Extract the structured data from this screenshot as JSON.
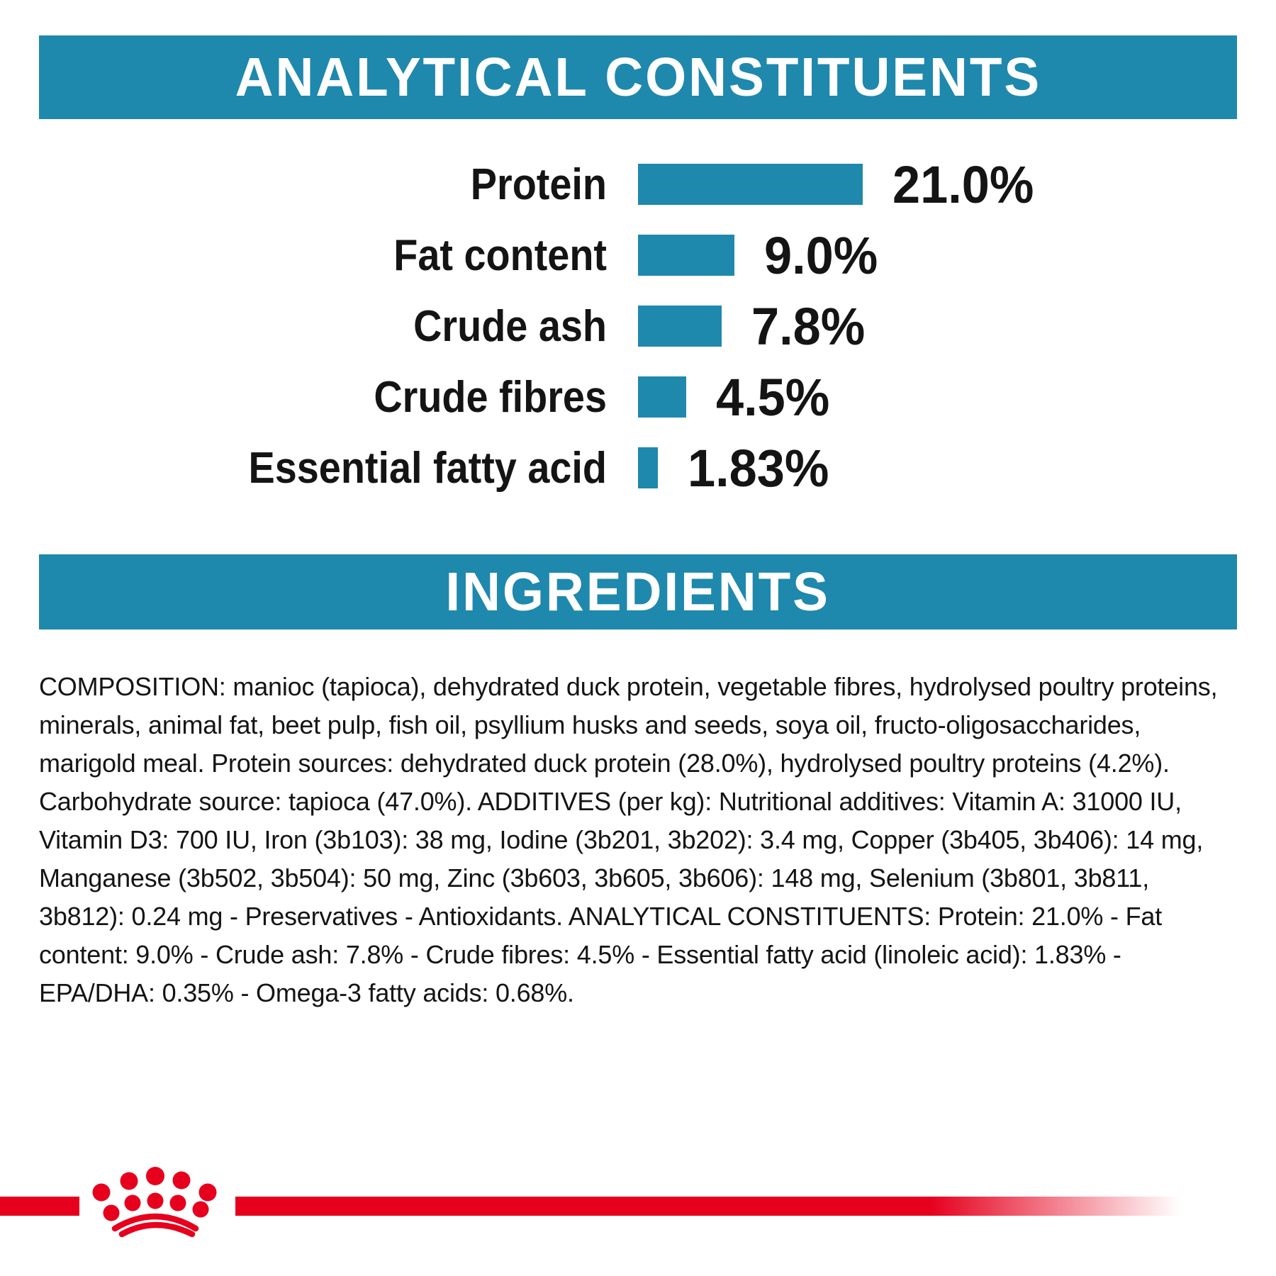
{
  "colors": {
    "teal": "#1F88AD",
    "red": "#E6001E",
    "text": "#141414",
    "header_text": "#FFFFFF",
    "background": "#FFFFFF"
  },
  "header_analytical": {
    "title": "ANALYTICAL CONSTITUENTS"
  },
  "header_ingredients": {
    "title": "INGREDIENTS"
  },
  "chart_data": {
    "type": "bar",
    "orientation": "horizontal",
    "title": "ANALYTICAL CONSTITUENTS",
    "categories": [
      "Protein",
      "Fat content",
      "Crude ash",
      "Crude fibres",
      "Essential fatty acid"
    ],
    "values": [
      21.0,
      9.0,
      7.8,
      4.5,
      1.83
    ],
    "value_labels": [
      "21.0%",
      "9.0%",
      "7.8%",
      "4.5%",
      "1.83%"
    ],
    "unit": "%",
    "xlim": [
      0,
      22
    ],
    "grid": false,
    "bar_color": "#1F88AD",
    "value_label_position": "right"
  },
  "ingredients_text": "COMPOSITION: manioc (tapioca), dehydrated duck protein, vegetable fibres, hydrolysed poultry proteins, minerals, animal fat, beet pulp, fish oil, psyllium husks and seeds, soya oil, fructo-oligosaccharides, marigold meal. Protein sources: dehydrated duck protein (28.0%), hydrolysed poultry proteins (4.2%). Carbohydrate source: tapioca (47.0%). ADDITIVES (per kg): Nutritional additives: Vitamin A: 31000 IU, Vitamin D3: 700 IU, Iron (3b103): 38 mg, Iodine (3b201, 3b202): 3.4 mg, Copper (3b405, 3b406): 14 mg, Manganese (3b502, 3b504): 50 mg, Zinc (3b603, 3b605, 3b606): 148 mg, Selenium (3b801, 3b811, 3b812): 0.24 mg - Preservatives - Antioxidants. ANALYTICAL CONSTITUENTS: Protein: 21.0% - Fat content: 9.0% - Crude ash: 7.8% - Crude fibres: 4.5% - Essential fatty acid (linoleic acid): 1.83% - EPA/DHA: 0.35% - Omega-3 fatty acids: 0.68%.",
  "logo": {
    "name": "Royal Canin crown",
    "color": "#E6001E"
  }
}
